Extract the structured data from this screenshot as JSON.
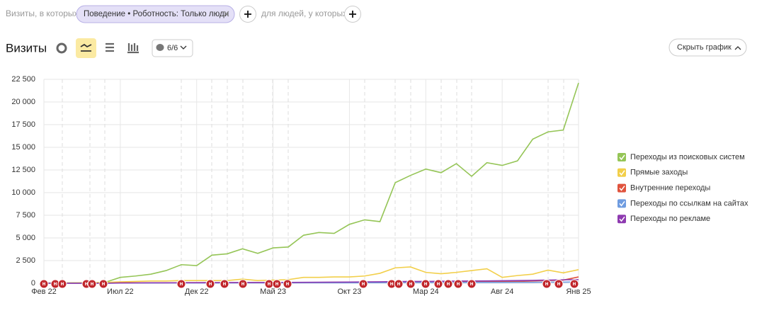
{
  "ui": {
    "filter_prefix": "Визиты, в которых",
    "filter_chip": "Поведение • Роботность: Только люди",
    "filter_middle": "для людей, у которых",
    "heading": "Визиты",
    "series_counter": "6/6",
    "hide_chart_button": "Скрыть график"
  },
  "chart_data": {
    "type": "line",
    "categories": [
      "Фев 22",
      null,
      null,
      null,
      null,
      "Июл 22",
      null,
      null,
      null,
      null,
      "Дек 22",
      null,
      null,
      null,
      null,
      "Май 23",
      null,
      null,
      null,
      null,
      "Окт 23",
      null,
      null,
      null,
      null,
      "Мар 24",
      null,
      null,
      null,
      null,
      "Авг 24",
      null,
      null,
      null,
      null,
      "Янв 25"
    ],
    "series": [
      {
        "name": "Переходы из поисковых систем",
        "color": "#95c557",
        "values": [
          40,
          40,
          50,
          60,
          100,
          650,
          800,
          1000,
          1400,
          2050,
          1950,
          3100,
          3250,
          3800,
          3300,
          3900,
          4000,
          5300,
          5600,
          5500,
          6500,
          7000,
          6800,
          11100,
          11900,
          12600,
          12200,
          13200,
          11800,
          13300,
          13000,
          13500,
          15900,
          16700,
          16900,
          22100
        ]
      },
      {
        "name": "Прямые заходы",
        "color": "#f2cf4a",
        "values": [
          20,
          30,
          40,
          60,
          100,
          150,
          200,
          250,
          250,
          300,
          300,
          300,
          300,
          450,
          300,
          350,
          400,
          650,
          650,
          700,
          700,
          800,
          1100,
          1700,
          1800,
          1200,
          1050,
          1200,
          1400,
          1600,
          650,
          850,
          1000,
          1450,
          1150,
          1500
        ]
      },
      {
        "name": "Внутренние переходы",
        "color": "#e0533d",
        "values": [
          0,
          0,
          0,
          0,
          0,
          50,
          50,
          50,
          50,
          60,
          60,
          60,
          60,
          70,
          70,
          80,
          80,
          90,
          90,
          100,
          100,
          120,
          120,
          150,
          150,
          150,
          150,
          150,
          150,
          200,
          200,
          200,
          250,
          300,
          350,
          700
        ]
      },
      {
        "name": "Переходы по ссылкам на сайтах",
        "color": "#6f9ce0",
        "values": [
          0,
          0,
          0,
          0,
          0,
          20,
          20,
          20,
          30,
          30,
          30,
          30,
          30,
          40,
          40,
          40,
          40,
          50,
          50,
          50,
          50,
          60,
          60,
          80,
          80,
          80,
          80,
          80,
          90,
          90,
          90,
          100,
          100,
          120,
          120,
          150
        ]
      },
      {
        "name": "Переходы по рекламе",
        "color": "#8e3ab0",
        "values": [
          0,
          0,
          0,
          0,
          0,
          30,
          40,
          50,
          50,
          60,
          60,
          70,
          70,
          80,
          80,
          90,
          90,
          100,
          110,
          120,
          130,
          150,
          160,
          180,
          200,
          200,
          220,
          240,
          250,
          260,
          280,
          300,
          320,
          350,
          380,
          400
        ]
      }
    ],
    "ylim": [
      0,
      22500
    ],
    "yticks": [
      0,
      {
        "value": 2500,
        "label": "2 500"
      },
      {
        "value": 5000,
        "label": "5 000"
      },
      {
        "value": 7500,
        "label": "7 500"
      },
      {
        "value": 10000,
        "label": "10 000"
      },
      {
        "value": 12500,
        "label": "12 500"
      },
      {
        "value": 15000,
        "label": "15 000"
      },
      {
        "value": 17500,
        "label": "17 500"
      },
      {
        "value": 20000,
        "label": "20 000"
      },
      {
        "value": 22500,
        "label": "22 500"
      }
    ],
    "grid": true,
    "legend": "right",
    "annotation_label": "н"
  }
}
